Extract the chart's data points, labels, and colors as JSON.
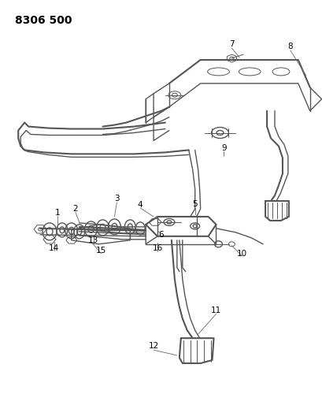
{
  "title": "8306 500",
  "bg": "#ffffff",
  "lc": "#555555",
  "tc": "#000000",
  "fig_w": 4.1,
  "fig_h": 5.33,
  "dpi": 100
}
